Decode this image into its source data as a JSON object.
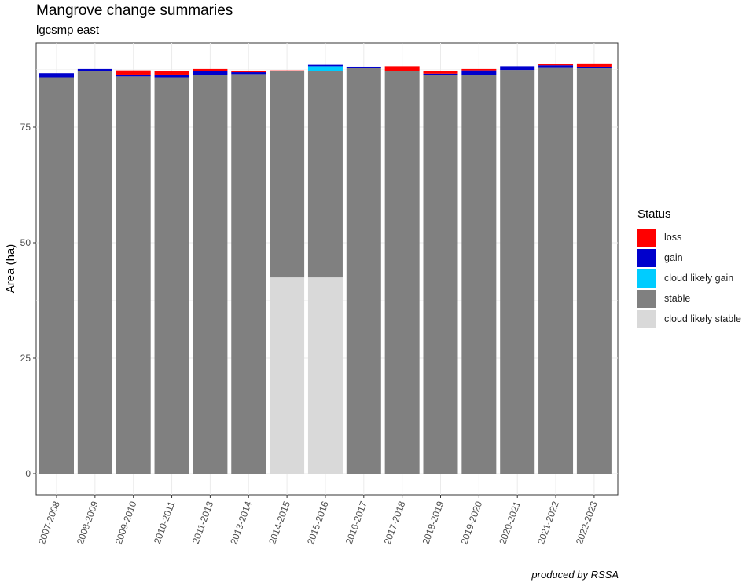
{
  "chart_data": {
    "type": "bar",
    "stacked": true,
    "title": "Mangrove change summaries",
    "subtitle": "lgcsmp east",
    "caption": "produced by RSSA",
    "xlabel": "",
    "ylabel": "Area (ha)",
    "ylim": [
      0,
      90
    ],
    "yticks": [
      0,
      25,
      50,
      75
    ],
    "grid": true,
    "legend_title": "Status",
    "legend_position": "right",
    "categories": [
      "2007-2008",
      "2008-2009",
      "2009-2010",
      "2010-2011",
      "2011-2013",
      "2013-2014",
      "2014-2015",
      "2015-2016",
      "2016-2017",
      "2017-2018",
      "2018-2019",
      "2019-2020",
      "2020-2021",
      "2021-2022",
      "2022-2023"
    ],
    "series": [
      {
        "name": "cloud likely stable",
        "color": "#d9d9d9",
        "values": [
          0,
          0,
          0,
          0,
          0,
          0,
          42.5,
          42.5,
          0,
          0,
          0,
          0,
          0,
          0,
          0
        ]
      },
      {
        "name": "stable",
        "color": "#808080",
        "values": [
          85.8,
          87.2,
          86.0,
          85.8,
          86.3,
          86.5,
          44.6,
          44.6,
          87.8,
          87.2,
          86.3,
          86.3,
          87.4,
          88.0,
          87.9
        ]
      },
      {
        "name": "cloud likely gain",
        "color": "#00ccff",
        "values": [
          0,
          0,
          0,
          0,
          0,
          0,
          0,
          1.1,
          0,
          0,
          0,
          0,
          0,
          0,
          0
        ]
      },
      {
        "name": "gain",
        "color": "#0000cc",
        "values": [
          0.9,
          0.4,
          0.4,
          0.6,
          0.8,
          0.4,
          0.1,
          0.3,
          0.3,
          0,
          0.3,
          1.0,
          0.8,
          0.4,
          0.2
        ]
      },
      {
        "name": "loss",
        "color": "#ff0000",
        "values": [
          0,
          0,
          0.9,
          0.7,
          0.5,
          0.3,
          0.1,
          0,
          0,
          1.0,
          0.6,
          0.3,
          0,
          0.3,
          0.7
        ]
      }
    ],
    "legend_order": [
      "loss",
      "gain",
      "cloud likely gain",
      "stable",
      "cloud likely stable"
    ]
  }
}
